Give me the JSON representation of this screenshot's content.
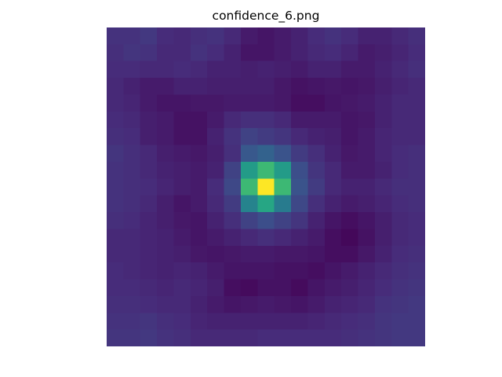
{
  "chart_data": {
    "type": "heatmap",
    "title": "confidence_6.png",
    "xlabel": "",
    "ylabel": "",
    "axes_visible": false,
    "colormap": "viridis",
    "vmin": 0.0,
    "vmax": 1.0,
    "rows": 19,
    "cols": 19,
    "values": [
      [
        0.15,
        0.15,
        0.17,
        0.13,
        0.12,
        0.14,
        0.15,
        0.12,
        0.08,
        0.06,
        0.08,
        0.1,
        0.13,
        0.15,
        0.13,
        0.1,
        0.1,
        0.12,
        0.14
      ],
      [
        0.14,
        0.16,
        0.15,
        0.12,
        0.12,
        0.15,
        0.13,
        0.1,
        0.06,
        0.06,
        0.08,
        0.1,
        0.12,
        0.13,
        0.11,
        0.08,
        0.09,
        0.11,
        0.13
      ],
      [
        0.13,
        0.13,
        0.12,
        0.12,
        0.13,
        0.12,
        0.1,
        0.1,
        0.09,
        0.1,
        0.09,
        0.08,
        0.1,
        0.1,
        0.08,
        0.08,
        0.1,
        0.12,
        0.14
      ],
      [
        0.12,
        0.1,
        0.08,
        0.08,
        0.1,
        0.1,
        0.09,
        0.09,
        0.09,
        0.09,
        0.07,
        0.05,
        0.06,
        0.07,
        0.06,
        0.07,
        0.09,
        0.11,
        0.12
      ],
      [
        0.12,
        0.11,
        0.08,
        0.06,
        0.06,
        0.07,
        0.07,
        0.08,
        0.08,
        0.08,
        0.07,
        0.04,
        0.04,
        0.06,
        0.07,
        0.08,
        0.1,
        0.12,
        0.12
      ],
      [
        0.13,
        0.12,
        0.09,
        0.08,
        0.05,
        0.05,
        0.08,
        0.12,
        0.14,
        0.14,
        0.12,
        0.08,
        0.08,
        0.08,
        0.06,
        0.07,
        0.1,
        0.12,
        0.12
      ],
      [
        0.14,
        0.13,
        0.09,
        0.08,
        0.05,
        0.05,
        0.1,
        0.15,
        0.2,
        0.18,
        0.16,
        0.12,
        0.1,
        0.09,
        0.06,
        0.08,
        0.11,
        0.12,
        0.12
      ],
      [
        0.16,
        0.14,
        0.12,
        0.09,
        0.08,
        0.07,
        0.09,
        0.14,
        0.28,
        0.32,
        0.26,
        0.18,
        0.14,
        0.1,
        0.07,
        0.08,
        0.11,
        0.13,
        0.14
      ],
      [
        0.15,
        0.14,
        0.12,
        0.1,
        0.09,
        0.08,
        0.1,
        0.2,
        0.55,
        0.68,
        0.55,
        0.24,
        0.16,
        0.12,
        0.08,
        0.08,
        0.1,
        0.13,
        0.14
      ],
      [
        0.15,
        0.14,
        0.13,
        0.11,
        0.09,
        0.08,
        0.13,
        0.22,
        0.68,
        1.0,
        0.68,
        0.26,
        0.18,
        0.12,
        0.1,
        0.1,
        0.12,
        0.14,
        0.14
      ],
      [
        0.15,
        0.14,
        0.12,
        0.09,
        0.06,
        0.08,
        0.12,
        0.18,
        0.45,
        0.6,
        0.42,
        0.22,
        0.14,
        0.1,
        0.08,
        0.09,
        0.11,
        0.13,
        0.14
      ],
      [
        0.14,
        0.13,
        0.11,
        0.09,
        0.07,
        0.06,
        0.1,
        0.14,
        0.2,
        0.24,
        0.2,
        0.16,
        0.1,
        0.06,
        0.04,
        0.06,
        0.09,
        0.12,
        0.13
      ],
      [
        0.12,
        0.12,
        0.11,
        0.1,
        0.08,
        0.06,
        0.08,
        0.1,
        0.12,
        0.14,
        0.12,
        0.1,
        0.08,
        0.04,
        0.02,
        0.05,
        0.09,
        0.12,
        0.13
      ],
      [
        0.12,
        0.12,
        0.11,
        0.1,
        0.09,
        0.07,
        0.06,
        0.07,
        0.08,
        0.08,
        0.07,
        0.07,
        0.06,
        0.04,
        0.04,
        0.07,
        0.1,
        0.13,
        0.14
      ],
      [
        0.13,
        0.12,
        0.11,
        0.1,
        0.11,
        0.1,
        0.08,
        0.06,
        0.06,
        0.06,
        0.05,
        0.05,
        0.04,
        0.06,
        0.08,
        0.1,
        0.12,
        0.14,
        0.15
      ],
      [
        0.13,
        0.13,
        0.12,
        0.11,
        0.12,
        0.11,
        0.09,
        0.04,
        0.03,
        0.05,
        0.05,
        0.03,
        0.06,
        0.08,
        0.09,
        0.11,
        0.13,
        0.15,
        0.16
      ],
      [
        0.14,
        0.14,
        0.13,
        0.12,
        0.12,
        0.1,
        0.08,
        0.06,
        0.07,
        0.08,
        0.07,
        0.06,
        0.08,
        0.1,
        0.11,
        0.12,
        0.15,
        0.16,
        0.17
      ],
      [
        0.15,
        0.15,
        0.16,
        0.14,
        0.13,
        0.11,
        0.1,
        0.1,
        0.1,
        0.1,
        0.1,
        0.1,
        0.11,
        0.12,
        0.13,
        0.14,
        0.16,
        0.17,
        0.17
      ],
      [
        0.16,
        0.16,
        0.17,
        0.15,
        0.14,
        0.12,
        0.12,
        0.12,
        0.12,
        0.13,
        0.13,
        0.13,
        0.13,
        0.13,
        0.14,
        0.15,
        0.16,
        0.17,
        0.17
      ]
    ]
  }
}
